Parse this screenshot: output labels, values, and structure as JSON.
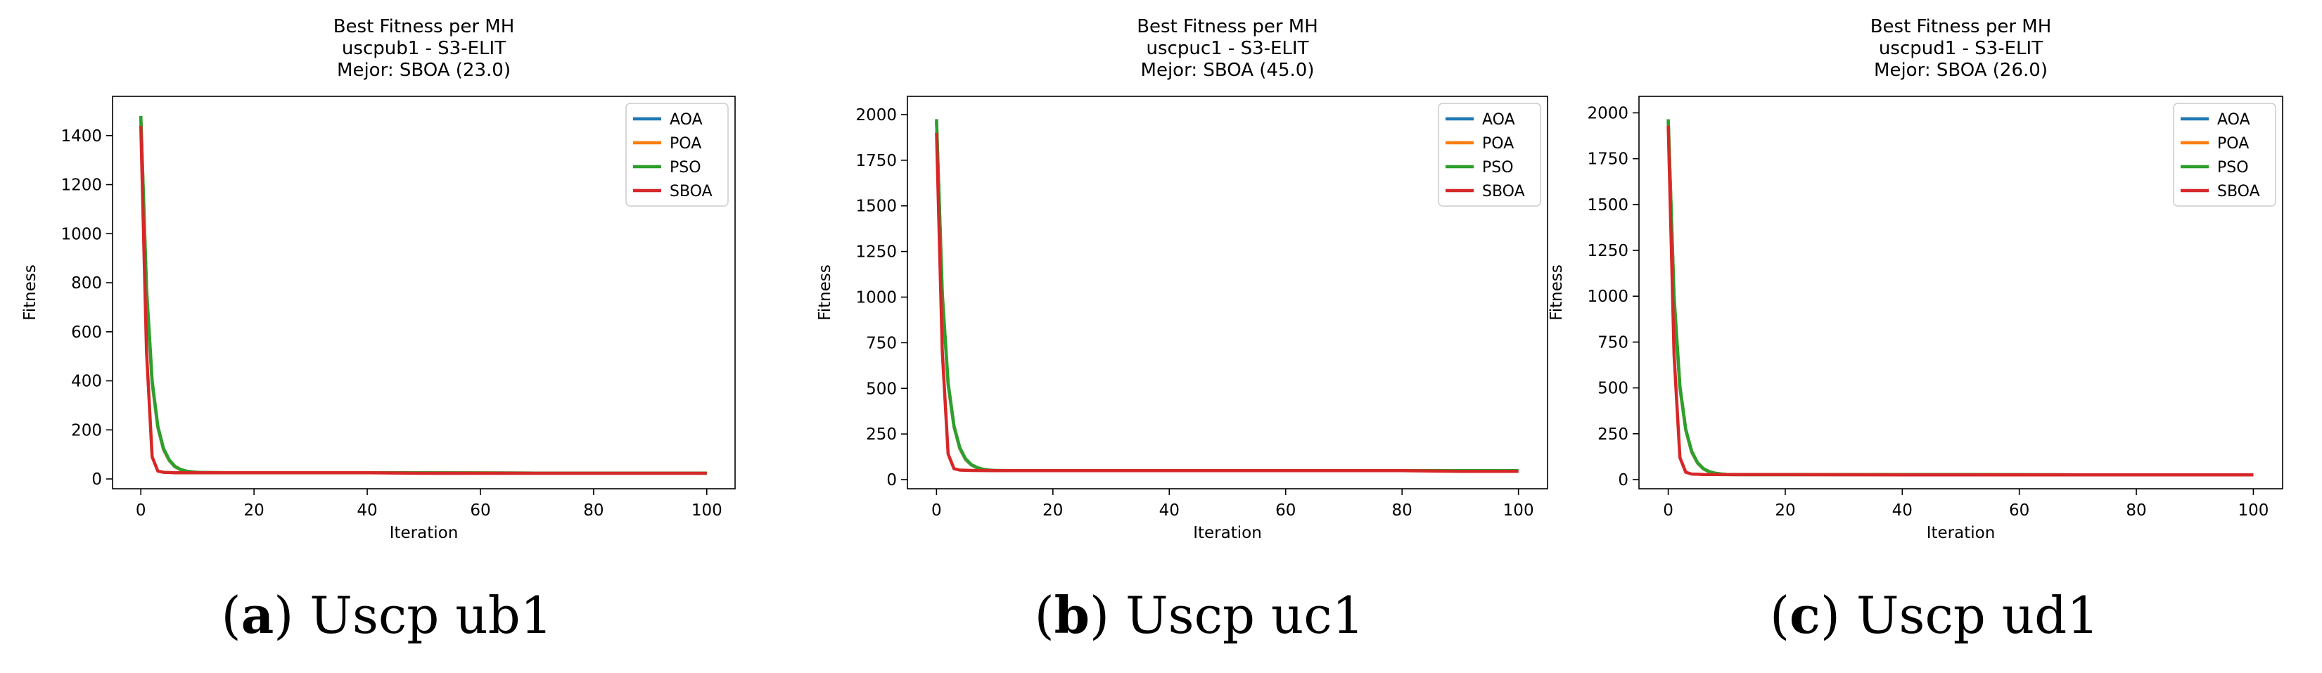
{
  "figure": {
    "panels": [
      {
        "title": [
          "Best Fitness per MH",
          "uscpub1 - S3-ELIT",
          "Mejor: SBOA (23.0)"
        ],
        "caption": {
          "open": "(",
          "letter": "a",
          "close": ")",
          "text": " Uscp ub1"
        }
      },
      {
        "title": [
          "Best Fitness per MH",
          "uscpuc1 - S3-ELIT",
          "Mejor: SBOA (45.0)"
        ],
        "caption": {
          "open": "(",
          "letter": "b",
          "close": ")",
          "text": " Uscp uc1"
        }
      },
      {
        "title": [
          "Best Fitness per MH",
          "uscpud1 - S3-ELIT",
          "Mejor: SBOA (26.0)"
        ],
        "caption": {
          "open": "(",
          "letter": "c",
          "close": ")",
          "text": " Uscp ud1"
        }
      }
    ]
  },
  "chart_data": [
    {
      "type": "line",
      "title": "Best Fitness per MH\nuscpub1 - S3-ELIT\nMejor: SBOA (23.0)",
      "xlabel": "Iteration",
      "ylabel": "Fitness",
      "xlim": [
        -5,
        105
      ],
      "ylim": [
        -40,
        1560
      ],
      "xticks": [
        0,
        20,
        40,
        60,
        80,
        100
      ],
      "yticks": [
        0,
        200,
        400,
        600,
        800,
        1000,
        1200,
        1400
      ],
      "legend": "top-right",
      "grid": false,
      "series": [
        {
          "name": "AOA",
          "color": "#1f77b4",
          "x": [
            0,
            1,
            2,
            3,
            4,
            5,
            6,
            7,
            8,
            9,
            10,
            12,
            15,
            20,
            30,
            50,
            70,
            100
          ],
          "y": [
            1470,
            760,
            390,
            210,
            120,
            75,
            50,
            38,
            31,
            28,
            27,
            26,
            25,
            25,
            25,
            25,
            24,
            24
          ]
        },
        {
          "name": "POA",
          "color": "#ff7f0e",
          "x": [
            0,
            1,
            2,
            3,
            4,
            5,
            6,
            7,
            8,
            9,
            10,
            12,
            15,
            20,
            30,
            50,
            70,
            100
          ],
          "y": [
            1470,
            770,
            395,
            212,
            122,
            76,
            51,
            38,
            31,
            28,
            27,
            26,
            25,
            25,
            25,
            25,
            24,
            24
          ]
        },
        {
          "name": "PSO",
          "color": "#2ca02c",
          "x": [
            0,
            1,
            2,
            3,
            4,
            5,
            6,
            7,
            8,
            9,
            10,
            12,
            15,
            20,
            30,
            50,
            70,
            100
          ],
          "y": [
            1480,
            780,
            400,
            215,
            125,
            78,
            52,
            39,
            32,
            29,
            27,
            26,
            25,
            25,
            25,
            25,
            24,
            24
          ]
        },
        {
          "name": "SBOA",
          "color": "#d62728",
          "x": [
            0,
            1,
            2,
            3,
            4,
            6,
            10,
            20,
            40,
            50,
            60,
            100
          ],
          "y": [
            1440,
            520,
            90,
            32,
            27,
            25,
            25,
            25,
            25,
            23,
            23,
            23
          ]
        }
      ]
    },
    {
      "type": "line",
      "title": "Best Fitness per MH\nuscpuc1 - S3-ELIT\nMejor: SBOA (45.0)",
      "xlabel": "Iteration",
      "ylabel": "Fitness",
      "xlim": [
        -5,
        105
      ],
      "ylim": [
        -50,
        2100
      ],
      "xticks": [
        0,
        20,
        40,
        60,
        80,
        100
      ],
      "yticks": [
        0,
        250,
        500,
        750,
        1000,
        1250,
        1500,
        1750,
        2000
      ],
      "legend": "top-right",
      "grid": false,
      "series": [
        {
          "name": "AOA",
          "color": "#1f77b4",
          "x": [
            0,
            1,
            2,
            3,
            4,
            5,
            6,
            7,
            8,
            9,
            10,
            12,
            15,
            20,
            30,
            50,
            70,
            100
          ],
          "y": [
            1960,
            1000,
            520,
            290,
            170,
            110,
            80,
            64,
            56,
            52,
            50,
            49,
            49,
            49,
            49,
            49,
            49,
            49
          ]
        },
        {
          "name": "POA",
          "color": "#ff7f0e",
          "x": [
            0,
            1,
            2,
            3,
            4,
            5,
            6,
            7,
            8,
            9,
            10,
            12,
            15,
            20,
            30,
            50,
            70,
            100
          ],
          "y": [
            1965,
            1010,
            525,
            292,
            172,
            112,
            81,
            65,
            57,
            52,
            50,
            49,
            49,
            49,
            49,
            49,
            49,
            49
          ]
        },
        {
          "name": "PSO",
          "color": "#2ca02c",
          "x": [
            0,
            1,
            2,
            3,
            4,
            5,
            6,
            7,
            8,
            9,
            10,
            12,
            15,
            20,
            30,
            50,
            70,
            100
          ],
          "y": [
            1975,
            1020,
            530,
            295,
            175,
            114,
            82,
            66,
            57,
            52,
            50,
            49,
            49,
            49,
            49,
            49,
            49,
            49
          ]
        },
        {
          "name": "SBOA",
          "color": "#d62728",
          "x": [
            0,
            1,
            2,
            3,
            4,
            6,
            10,
            20,
            40,
            80,
            90,
            100
          ],
          "y": [
            1900,
            700,
            140,
            60,
            52,
            50,
            49,
            49,
            49,
            49,
            45,
            45
          ]
        }
      ]
    },
    {
      "type": "line",
      "title": "Best Fitness per MH\nuscpud1 - S3-ELIT\nMejor: SBOA (26.0)",
      "xlabel": "Iteration",
      "ylabel": "Fitness",
      "xlim": [
        -5,
        105
      ],
      "ylim": [
        -50,
        2090
      ],
      "xticks": [
        0,
        20,
        40,
        60,
        80,
        100
      ],
      "yticks": [
        0,
        250,
        500,
        750,
        1000,
        1250,
        1500,
        1750,
        2000
      ],
      "legend": "top-right",
      "grid": false,
      "series": [
        {
          "name": "AOA",
          "color": "#1f77b4",
          "x": [
            0,
            1,
            2,
            3,
            4,
            5,
            6,
            7,
            8,
            9,
            10,
            12,
            15,
            20,
            30,
            50,
            70,
            100
          ],
          "y": [
            1950,
            980,
            500,
            270,
            150,
            90,
            58,
            42,
            34,
            30,
            28,
            27,
            27,
            27,
            27,
            27,
            26,
            26
          ]
        },
        {
          "name": "POA",
          "color": "#ff7f0e",
          "x": [
            0,
            1,
            2,
            3,
            4,
            5,
            6,
            7,
            8,
            9,
            10,
            12,
            15,
            20,
            30,
            50,
            70,
            100
          ],
          "y": [
            1955,
            990,
            505,
            272,
            152,
            91,
            59,
            43,
            35,
            30,
            28,
            27,
            27,
            27,
            27,
            27,
            26,
            26
          ]
        },
        {
          "name": "PSO",
          "color": "#2ca02c",
          "x": [
            0,
            1,
            2,
            3,
            4,
            5,
            6,
            7,
            8,
            9,
            10,
            12,
            15,
            20,
            30,
            50,
            70,
            100
          ],
          "y": [
            1965,
            1000,
            510,
            275,
            155,
            93,
            60,
            44,
            35,
            31,
            28,
            27,
            27,
            27,
            27,
            27,
            26,
            26
          ]
        },
        {
          "name": "SBOA",
          "color": "#d62728",
          "x": [
            0,
            1,
            2,
            3,
            4,
            6,
            10,
            20,
            40,
            100
          ],
          "y": [
            1930,
            680,
            120,
            40,
            30,
            28,
            27,
            27,
            26,
            26
          ]
        }
      ]
    }
  ]
}
